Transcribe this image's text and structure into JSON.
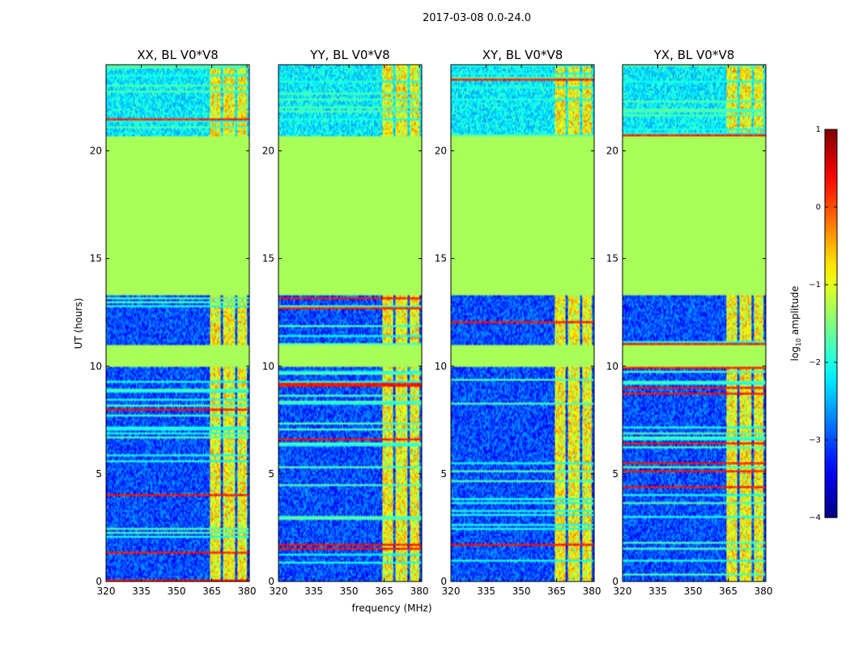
{
  "chart_data": {
    "type": "heatmap",
    "suptitle": "2017-03-08 0.0-24.0",
    "xlabel": "frequency (MHz)",
    "ylabel": "UT (hours)",
    "xlim": [
      320,
      381
    ],
    "ylim": [
      0,
      24
    ],
    "xticks": [
      320,
      335,
      350,
      365,
      380
    ],
    "yticks": [
      0,
      5,
      10,
      15,
      20
    ],
    "colorbar": {
      "label": "log10 amplitude",
      "label_main": "log",
      "label_sub": "10",
      "label_tail": " amplitude",
      "range": [
        -4,
        1
      ],
      "ticks": [
        "1",
        "0",
        "−1",
        "−2",
        "−3",
        "−4"
      ],
      "colormap": "jet"
    },
    "masked_ut_ranges": [
      [
        13.3,
        20.7
      ],
      [
        10.0,
        11.0
      ]
    ],
    "panels": [
      {
        "title": "XX, BL V0*V8",
        "bright_band_mhz": [
          [
            364,
            369
          ],
          [
            370,
            375
          ],
          [
            376,
            380
          ]
        ]
      },
      {
        "title": "YY, BL V0*V8",
        "bright_band_mhz": [
          [
            364,
            369
          ],
          [
            370,
            375
          ],
          [
            376,
            380
          ]
        ]
      },
      {
        "title": "XY, BL V0*V8",
        "bright_band_mhz": [
          [
            364,
            369
          ],
          [
            370,
            375
          ],
          [
            376,
            380
          ]
        ]
      },
      {
        "title": "YX, BL V0*V8",
        "bright_band_mhz": [
          [
            364,
            369
          ],
          [
            370,
            375
          ],
          [
            376,
            380
          ]
        ]
      }
    ]
  }
}
